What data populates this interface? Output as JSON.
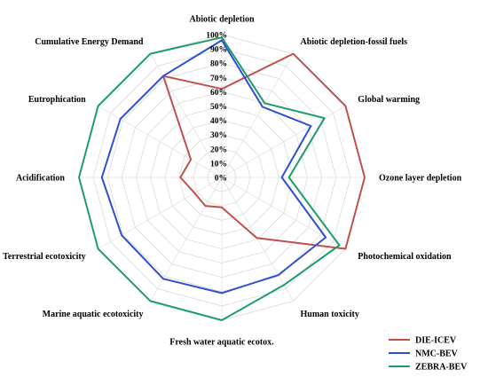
{
  "chart_data": {
    "type": "radar",
    "axes": [
      "Abiotic depletion",
      "Abiotic depletion-fossil fuels",
      "Global warming",
      "Ozone layer depletion",
      "Photochemical oxidation",
      "Human toxicity",
      "Fresh water aquatic ecotox.",
      "Marine aquatic ecotoxicity",
      "Terrestrial ecotoxicity",
      "Acidification",
      "Eutrophication",
      "Cumulative Energy Demand"
    ],
    "ticks": [
      "0%",
      "10%",
      "20%",
      "30%",
      "40%",
      "50%",
      "60%",
      "70%",
      "80%",
      "90%",
      "100%"
    ],
    "range": [
      0,
      100
    ],
    "grid": true,
    "legend_position": "bottom-right",
    "series": [
      {
        "name": "DIE-ICEV",
        "color": "#c0504d",
        "values": [
          62,
          100,
          100,
          100,
          100,
          49,
          21,
          23,
          22,
          29,
          25,
          82
        ]
      },
      {
        "name": "NMC-BEV",
        "color": "#2e4fd0",
        "values": [
          96,
          57,
          72,
          42,
          84,
          79,
          81,
          82,
          81,
          84,
          82,
          82
        ]
      },
      {
        "name": "ZEBRA-BEV",
        "color": "#1f9c6b",
        "values": [
          98,
          60,
          83,
          47,
          95,
          87,
          100,
          100,
          100,
          100,
          100,
          100
        ]
      }
    ]
  }
}
